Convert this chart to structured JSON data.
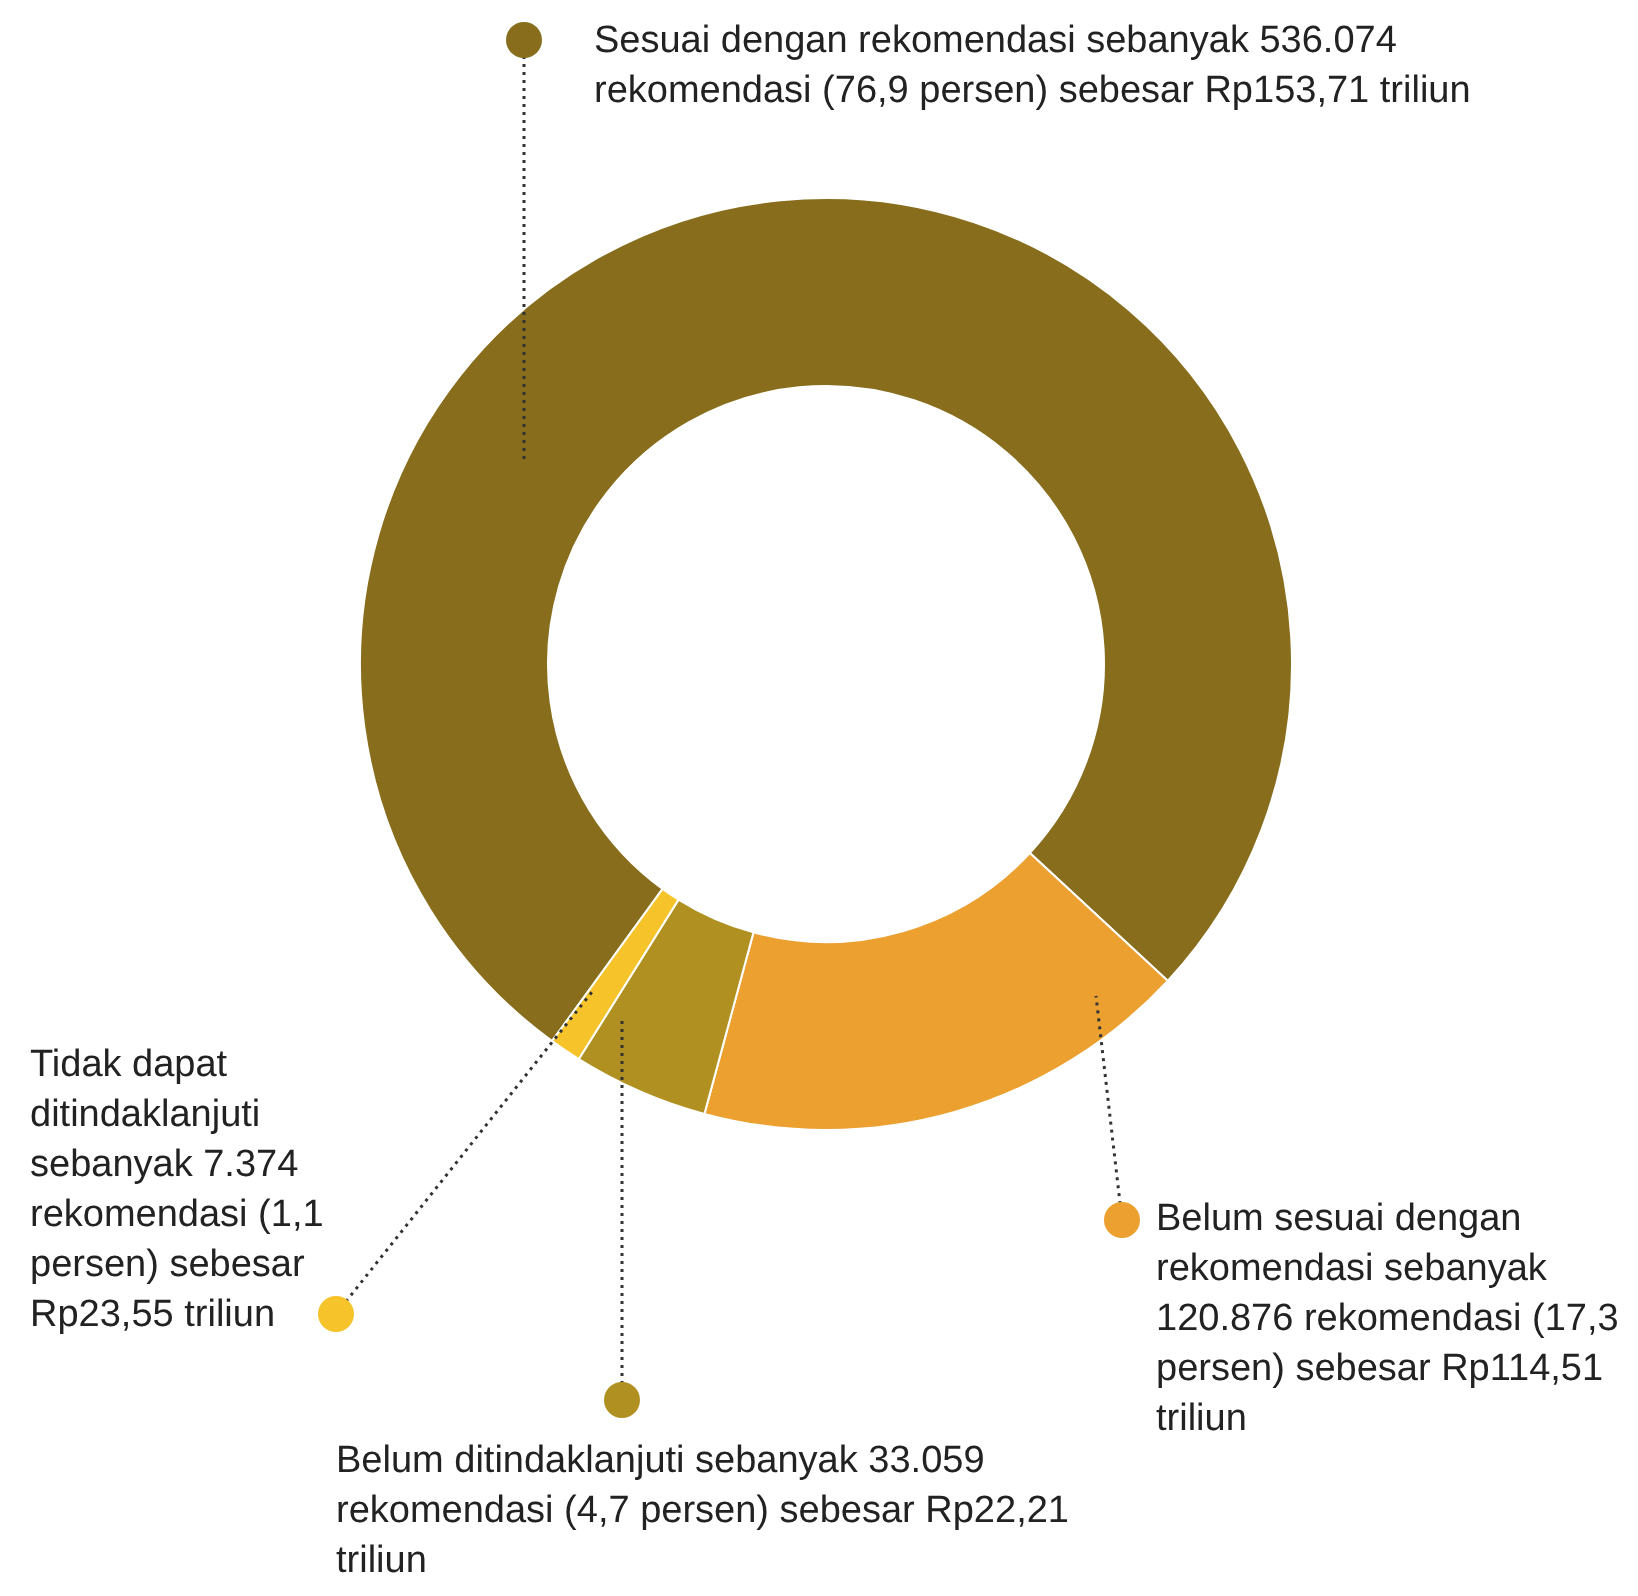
{
  "chart_data": {
    "type": "donut",
    "categories": [
      "Sesuai dengan rekomendasi sebanyak 536.074 rekomendasi (76,9 persen) sebesar Rp153,71 triliun",
      "Belum sesuai dengan rekomendasi sebanyak 120.876 rekomendasi (17,3 persen) sebesar Rp114,51 triliun",
      "Belum ditindaklanjuti sebanyak 33.059 rekomendasi (4,7 persen) sebesar Rp22,21 triliun",
      "Tidak dapat ditindaklanjuti sebanyak 7.374 rekomendasi (1,1 persen) sebesar Rp23,55 triliun"
    ],
    "values": [
      76.9,
      17.3,
      4.7,
      1.1
    ],
    "colors": [
      "#876d1c",
      "#eba030",
      "#b09020",
      "#f6c42a"
    ],
    "legend": "right"
  }
}
